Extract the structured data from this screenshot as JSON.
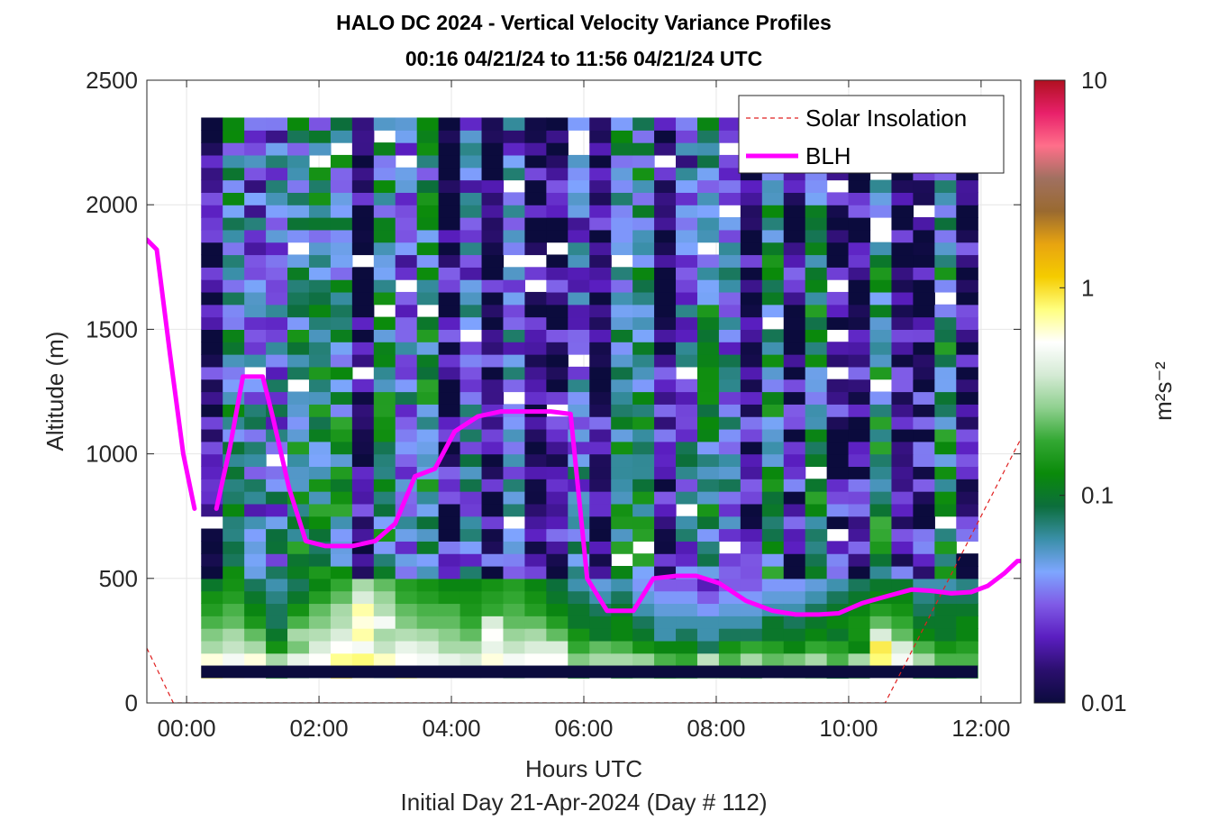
{
  "chart_data": {
    "type": "heatmap",
    "title_line1": "HALO DC 2024 - Vertical Velocity Variance Profiles",
    "title_line2": "00:16 04/21/24 to 11:56 04/21/24  UTC",
    "xlabel": "Hours UTC",
    "subxlabel": "Initial Day 21-Apr-2024 (Day # 112)",
    "ylabel": "Altitude (m)",
    "colorbar_label": "m²s⁻²",
    "xlim": [
      -0.6,
      12.6
    ],
    "ylim": [
      0,
      2500
    ],
    "x_ticks": [
      0,
      2,
      4,
      6,
      8,
      10,
      12
    ],
    "x_tick_labels": [
      "00:00",
      "02:00",
      "04:00",
      "06:00",
      "08:00",
      "10:00",
      "12:00"
    ],
    "y_ticks": [
      0,
      500,
      1000,
      1500,
      2000,
      2500
    ],
    "y_tick_labels": [
      "0",
      "500",
      "1000",
      "1500",
      "2000",
      "2500"
    ],
    "colorbar": {
      "scale": "log",
      "range": [
        0.01,
        10
      ],
      "ticks": [
        0.01,
        0.1,
        1,
        10
      ],
      "tick_labels": [
        "0.01",
        "0.1",
        "1",
        "10"
      ],
      "colors": [
        "#0b0b3d",
        "#2b0f6e",
        "#5a1ec0",
        "#7f5ae6",
        "#7ea6ff",
        "#3a8fa8",
        "#0c6e3c",
        "#0a8a0a",
        "#33a833",
        "#8fd08f",
        "#d4ead4",
        "#ffffff",
        "#ffff80",
        "#f5cc00",
        "#e8a410",
        "#9a6a30",
        "#a07060",
        "#ff6f8a",
        "#e8206a",
        "#b01020"
      ]
    },
    "legend": {
      "placement": "top-right",
      "entries": [
        {
          "label": "Solar Insolation",
          "color": "#e02020",
          "style": "dashed"
        },
        {
          "label": "BLH",
          "color": "#ff00ff",
          "style": "solid"
        }
      ]
    },
    "grid": true,
    "series": [
      {
        "name": "BLH",
        "color": "#ff00ff",
        "segments": [
          [
            [
              -0.6,
              1860
            ],
            [
              -0.45,
              1820
            ],
            [
              -0.25,
              1400
            ],
            [
              -0.05,
              1000
            ],
            [
              0.12,
              780
            ]
          ],
          [
            [
              0.45,
              780
            ],
            [
              0.65,
              1020
            ],
            [
              0.85,
              1310
            ],
            [
              1.15,
              1310
            ],
            [
              1.3,
              1150
            ],
            [
              1.55,
              860
            ],
            [
              1.8,
              650
            ],
            [
              2.1,
              630
            ],
            [
              2.5,
              630
            ],
            [
              2.85,
              650
            ],
            [
              3.15,
              720
            ],
            [
              3.45,
              910
            ],
            [
              3.75,
              940
            ],
            [
              4.05,
              1090
            ],
            [
              4.4,
              1150
            ],
            [
              4.75,
              1170
            ],
            [
              5.1,
              1170
            ],
            [
              5.5,
              1170
            ],
            [
              5.8,
              1160
            ],
            [
              6.05,
              500
            ],
            [
              6.35,
              370
            ],
            [
              6.75,
              370
            ],
            [
              7.05,
              500
            ],
            [
              7.4,
              510
            ],
            [
              7.7,
              510
            ],
            [
              8.05,
              480
            ],
            [
              8.45,
              410
            ],
            [
              8.85,
              370
            ],
            [
              9.2,
              355
            ],
            [
              9.55,
              355
            ],
            [
              9.85,
              360
            ],
            [
              10.2,
              400
            ],
            [
              10.6,
              430
            ],
            [
              10.95,
              455
            ],
            [
              11.25,
              450
            ],
            [
              11.55,
              440
            ],
            [
              11.85,
              445
            ],
            [
              12.1,
              470
            ],
            [
              12.35,
              520
            ],
            [
              12.55,
              570
            ],
            [
              12.6,
              570
            ]
          ]
        ]
      },
      {
        "name": "Solar Insolation",
        "color": "#e02020",
        "points": [
          [
            -0.6,
            220
          ],
          [
            -0.2,
            0
          ],
          [
            10.55,
            0
          ],
          [
            12.6,
            1060
          ]
        ]
      }
    ],
    "heatmap": {
      "x_start": 0.22,
      "x_end": 11.95,
      "y_start": 100,
      "y_end": 2500,
      "n_cols": 36,
      "n_rows": 48,
      "missing_top_rows": 3,
      "bottom_band": {
        "y_from": 100,
        "y_to": 150,
        "value": 0.01
      },
      "rows_from_bottom": [
        [
          0.78,
          0.6,
          0.55,
          0.2,
          0.34,
          0.45,
          0.9,
          0.6,
          0.42,
          0.75,
          0.6,
          0.5,
          0.45,
          0.5,
          0.34,
          0.5,
          0.6,
          0.2,
          0.45,
          0.2,
          0.25,
          0.18,
          0.2,
          0.28,
          0.26,
          0.22,
          0.38,
          0.32,
          0.25,
          0.1,
          0.22,
          0.5,
          0.6,
          0.2,
          0.18,
          0.2
        ],
        [
          0.6,
          0.5,
          0.6,
          0.3,
          0.45,
          0.55,
          0.75,
          0.8,
          0.65,
          0.55,
          0.5,
          0.45,
          0.4,
          0.6,
          0.5,
          0.55,
          0.55,
          0.25,
          0.3,
          0.3,
          0.28,
          0.2,
          0.18,
          0.34,
          0.2,
          0.3,
          0.22,
          0.24,
          0.3,
          0.2,
          0.3,
          0.8,
          0.5,
          0.3,
          0.2,
          0.2
        ],
        [
          0.3,
          0.35,
          0.3,
          0.14,
          0.24,
          0.4,
          0.55,
          0.5,
          0.35,
          0.45,
          0.4,
          0.3,
          0.3,
          0.45,
          0.35,
          0.4,
          0.4,
          0.18,
          0.22,
          0.2,
          0.14,
          0.12,
          0.12,
          0.08,
          0.14,
          0.18,
          0.16,
          0.12,
          0.18,
          0.16,
          0.12,
          0.9,
          0.4,
          0.2,
          0.14,
          0.16
        ],
        [
          0.25,
          0.3,
          0.22,
          0.1,
          0.3,
          0.32,
          0.4,
          0.7,
          0.3,
          0.32,
          0.3,
          0.26,
          0.22,
          0.55,
          0.28,
          0.3,
          0.22,
          0.14,
          0.1,
          0.12,
          0.1,
          0.06,
          0.08,
          0.06,
          0.08,
          0.08,
          0.1,
          0.1,
          0.12,
          0.1,
          0.14,
          0.4,
          0.22,
          0.12,
          0.1,
          0.12
        ],
        [
          0.2,
          0.22,
          0.15,
          0.08,
          0.2,
          0.25,
          0.32,
          0.6,
          0.5,
          0.25,
          0.22,
          0.22,
          0.18,
          0.4,
          0.22,
          0.22,
          0.16,
          0.1,
          0.1,
          0.12,
          0.08,
          0.06,
          0.06,
          0.06,
          0.06,
          0.06,
          0.1,
          0.08,
          0.1,
          0.12,
          0.14,
          0.22,
          0.18,
          0.1,
          0.1,
          0.12
        ],
        [
          0.16,
          0.2,
          0.12,
          0.08,
          0.14,
          0.22,
          0.3,
          0.7,
          0.32,
          0.22,
          0.2,
          0.2,
          0.15,
          0.18,
          0.2,
          0.16,
          0.12,
          0.1,
          0.08,
          0.1,
          0.06,
          0.05,
          0.05,
          0.04,
          0.05,
          0.05,
          0.06,
          0.06,
          0.08,
          0.1,
          0.12,
          0.16,
          0.14,
          0.08,
          0.1,
          0.1
        ],
        [
          0.14,
          0.16,
          0.1,
          0.07,
          0.1,
          0.16,
          0.22,
          0.4,
          0.28,
          0.18,
          0.16,
          0.14,
          0.14,
          0.16,
          0.18,
          0.14,
          0.1,
          0.08,
          0.06,
          0.08,
          0.05,
          0.04,
          0.04,
          0.03,
          0.04,
          0.04,
          0.05,
          0.05,
          0.06,
          0.08,
          0.1,
          0.12,
          0.12,
          0.07,
          0.08,
          0.08
        ],
        [
          0.1,
          0.14,
          0.08,
          0.06,
          0.08,
          0.12,
          0.18,
          0.3,
          0.22,
          0.16,
          0.14,
          0.12,
          0.12,
          0.14,
          0.16,
          0.12,
          0.09,
          0.06,
          0.05,
          0.06,
          0.04,
          0.03,
          0.03,
          0.02,
          0.03,
          0.03,
          0.04,
          0.04,
          0.05,
          0.06,
          0.08,
          0.1,
          0.1,
          0.06,
          0.06,
          0.07
        ]
      ]
    }
  }
}
